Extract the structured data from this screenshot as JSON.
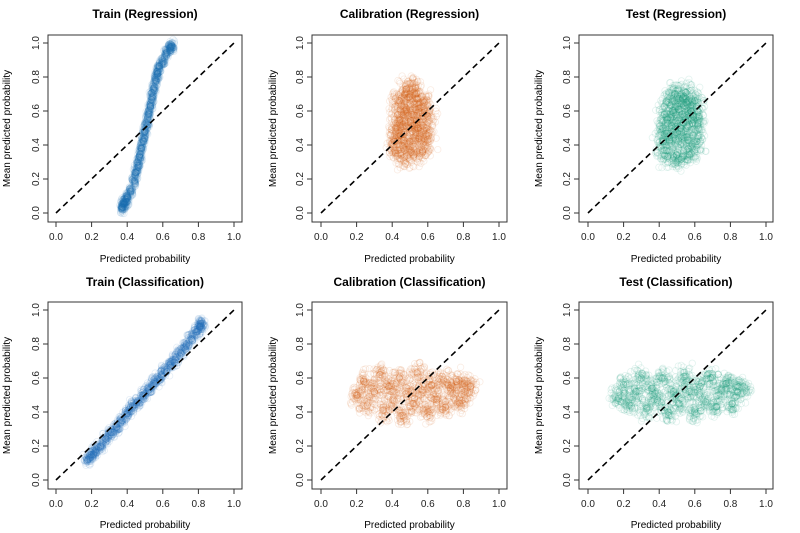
{
  "chart_data": [
    {
      "type": "scatter",
      "title": "Train (Regression)",
      "xlabel": "Predicted probability",
      "ylabel": "Mean predicted probability",
      "xlim": [
        0,
        1
      ],
      "ylim": [
        0,
        1
      ],
      "color": "#1f72b8",
      "reference_line": "y = x (dashed)",
      "points": [
        [
          0.37,
          0.03
        ],
        [
          0.38,
          0.05
        ],
        [
          0.39,
          0.07
        ],
        [
          0.4,
          0.09
        ],
        [
          0.42,
          0.13
        ],
        [
          0.44,
          0.19
        ],
        [
          0.45,
          0.24
        ],
        [
          0.46,
          0.28
        ],
        [
          0.47,
          0.33
        ],
        [
          0.48,
          0.38
        ],
        [
          0.49,
          0.43
        ],
        [
          0.5,
          0.48
        ],
        [
          0.51,
          0.53
        ],
        [
          0.52,
          0.58
        ],
        [
          0.53,
          0.63
        ],
        [
          0.54,
          0.68
        ],
        [
          0.55,
          0.73
        ],
        [
          0.56,
          0.78
        ],
        [
          0.57,
          0.82
        ],
        [
          0.58,
          0.86
        ],
        [
          0.6,
          0.9
        ],
        [
          0.62,
          0.94
        ],
        [
          0.64,
          0.97
        ],
        [
          0.65,
          0.98
        ]
      ]
    },
    {
      "type": "scatter",
      "title": "Calibration (Regression)",
      "xlabel": "Predicted probability",
      "ylabel": "Mean predicted probability",
      "xlim": [
        0,
        1
      ],
      "ylim": [
        0,
        1
      ],
      "color": "#d8601a",
      "reference_line": "y = x (dashed)",
      "points": [
        [
          0.42,
          0.35
        ],
        [
          0.47,
          0.33
        ],
        [
          0.52,
          0.34
        ],
        [
          0.57,
          0.36
        ],
        [
          0.41,
          0.42
        ],
        [
          0.45,
          0.43
        ],
        [
          0.5,
          0.42
        ],
        [
          0.55,
          0.44
        ],
        [
          0.6,
          0.43
        ],
        [
          0.42,
          0.5
        ],
        [
          0.46,
          0.52
        ],
        [
          0.5,
          0.5
        ],
        [
          0.54,
          0.52
        ],
        [
          0.59,
          0.5
        ],
        [
          0.43,
          0.58
        ],
        [
          0.47,
          0.6
        ],
        [
          0.51,
          0.58
        ],
        [
          0.55,
          0.6
        ],
        [
          0.6,
          0.57
        ],
        [
          0.44,
          0.66
        ],
        [
          0.49,
          0.68
        ],
        [
          0.54,
          0.67
        ],
        [
          0.58,
          0.65
        ],
        [
          0.48,
          0.73
        ],
        [
          0.53,
          0.74
        ]
      ]
    },
    {
      "type": "scatter",
      "title": "Test (Regression)",
      "xlabel": "Predicted probability",
      "ylabel": "Mean predicted probability",
      "xlim": [
        0,
        1
      ],
      "ylim": [
        0,
        1
      ],
      "color": "#1a9c78",
      "reference_line": "y = x (dashed)",
      "points": [
        [
          0.43,
          0.34
        ],
        [
          0.48,
          0.33
        ],
        [
          0.53,
          0.33
        ],
        [
          0.58,
          0.35
        ],
        [
          0.42,
          0.42
        ],
        [
          0.46,
          0.43
        ],
        [
          0.51,
          0.42
        ],
        [
          0.56,
          0.43
        ],
        [
          0.61,
          0.42
        ],
        [
          0.42,
          0.5
        ],
        [
          0.47,
          0.51
        ],
        [
          0.52,
          0.5
        ],
        [
          0.57,
          0.52
        ],
        [
          0.62,
          0.5
        ],
        [
          0.43,
          0.58
        ],
        [
          0.48,
          0.59
        ],
        [
          0.53,
          0.58
        ],
        [
          0.58,
          0.6
        ],
        [
          0.62,
          0.57
        ],
        [
          0.45,
          0.65
        ],
        [
          0.5,
          0.66
        ],
        [
          0.55,
          0.65
        ],
        [
          0.6,
          0.66
        ],
        [
          0.49,
          0.7
        ],
        [
          0.55,
          0.71
        ]
      ]
    },
    {
      "type": "scatter",
      "title": "Train (Classification)",
      "xlabel": "Predicted probability",
      "ylabel": "Mean predicted probability",
      "xlim": [
        0,
        1
      ],
      "ylim": [
        0,
        1
      ],
      "color": "#2b74bb",
      "reference_line": "y = x (dashed)",
      "points": [
        [
          0.18,
          0.12
        ],
        [
          0.2,
          0.15
        ],
        [
          0.22,
          0.17
        ],
        [
          0.25,
          0.2
        ],
        [
          0.28,
          0.24
        ],
        [
          0.31,
          0.28
        ],
        [
          0.34,
          0.31
        ],
        [
          0.37,
          0.35
        ],
        [
          0.4,
          0.39
        ],
        [
          0.43,
          0.43
        ],
        [
          0.46,
          0.46
        ],
        [
          0.49,
          0.5
        ],
        [
          0.52,
          0.53
        ],
        [
          0.55,
          0.57
        ],
        [
          0.58,
          0.6
        ],
        [
          0.61,
          0.64
        ],
        [
          0.64,
          0.68
        ],
        [
          0.67,
          0.71
        ],
        [
          0.7,
          0.75
        ],
        [
          0.73,
          0.79
        ],
        [
          0.76,
          0.83
        ],
        [
          0.79,
          0.87
        ],
        [
          0.81,
          0.9
        ],
        [
          0.82,
          0.92
        ]
      ]
    },
    {
      "type": "scatter",
      "title": "Calibration (Classification)",
      "xlabel": "Predicted probability",
      "ylabel": "Mean predicted probability",
      "xlim": [
        0,
        1
      ],
      "ylim": [
        0,
        1
      ],
      "color": "#d8601a",
      "reference_line": "y = x (dashed)",
      "points": [
        [
          0.2,
          0.5
        ],
        [
          0.24,
          0.58
        ],
        [
          0.26,
          0.44
        ],
        [
          0.3,
          0.52
        ],
        [
          0.33,
          0.62
        ],
        [
          0.35,
          0.41
        ],
        [
          0.38,
          0.55
        ],
        [
          0.41,
          0.47
        ],
        [
          0.44,
          0.6
        ],
        [
          0.46,
          0.38
        ],
        [
          0.49,
          0.52
        ],
        [
          0.52,
          0.45
        ],
        [
          0.54,
          0.63
        ],
        [
          0.57,
          0.53
        ],
        [
          0.6,
          0.4
        ],
        [
          0.62,
          0.56
        ],
        [
          0.65,
          0.47
        ],
        [
          0.68,
          0.61
        ],
        [
          0.7,
          0.43
        ],
        [
          0.73,
          0.53
        ],
        [
          0.76,
          0.58
        ],
        [
          0.78,
          0.45
        ],
        [
          0.81,
          0.52
        ],
        [
          0.84,
          0.55
        ]
      ]
    },
    {
      "type": "scatter",
      "title": "Test (Classification)",
      "xlabel": "Predicted probability",
      "ylabel": "Mean predicted probability",
      "xlim": [
        0,
        1
      ],
      "ylim": [
        0,
        1
      ],
      "color": "#1a9c78",
      "reference_line": "y = x (dashed)",
      "points": [
        [
          0.17,
          0.48
        ],
        [
          0.2,
          0.56
        ],
        [
          0.23,
          0.44
        ],
        [
          0.27,
          0.52
        ],
        [
          0.3,
          0.6
        ],
        [
          0.33,
          0.42
        ],
        [
          0.36,
          0.54
        ],
        [
          0.39,
          0.47
        ],
        [
          0.42,
          0.6
        ],
        [
          0.45,
          0.4
        ],
        [
          0.48,
          0.52
        ],
        [
          0.51,
          0.45
        ],
        [
          0.54,
          0.61
        ],
        [
          0.57,
          0.52
        ],
        [
          0.6,
          0.4
        ],
        [
          0.63,
          0.55
        ],
        [
          0.66,
          0.46
        ],
        [
          0.69,
          0.6
        ],
        [
          0.72,
          0.43
        ],
        [
          0.75,
          0.53
        ],
        [
          0.78,
          0.57
        ],
        [
          0.81,
          0.45
        ],
        [
          0.84,
          0.52
        ],
        [
          0.87,
          0.55
        ]
      ]
    }
  ],
  "ticks": [
    "0.0",
    "0.2",
    "0.4",
    "0.6",
    "0.8",
    "1.0"
  ]
}
